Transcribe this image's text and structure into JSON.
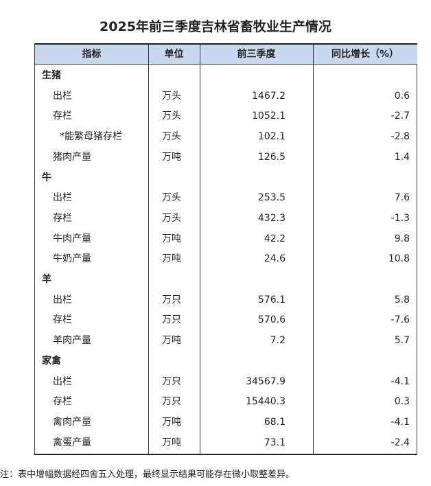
{
  "title": "2025年前三季度吉林省畜牧业生产情况",
  "table": {
    "header": [
      "指标",
      "单位",
      "前三季度",
      "同比增长（%）"
    ],
    "groups": [
      {
        "name": "生猪",
        "items": [
          {
            "name": "出栏",
            "unit": "万头",
            "value": 1467.2,
            "change": 0.6
          },
          {
            "name": "存栏",
            "unit": "万头",
            "value": 1052.1,
            "change": -2.7
          },
          {
            "name": "*能繁母猪存栏",
            "unit": "万头",
            "value": 102.1,
            "change": -2.8
          },
          {
            "name": "猪肉产量",
            "unit": "万吨",
            "value": 126.5,
            "change": 1.4
          }
        ]
      },
      {
        "name": "牛",
        "items": [
          {
            "name": "出栏",
            "unit": "万头",
            "value": 253.5,
            "change": 7.6
          },
          {
            "name": "存栏",
            "unit": "万头",
            "value": 432.3,
            "change": -1.3
          },
          {
            "name": "牛肉产量",
            "unit": "万吨",
            "value": 42.2,
            "change": 9.8
          },
          {
            "name": "牛奶产量",
            "unit": "万吨",
            "value": 24.6,
            "change": 10.8
          }
        ]
      },
      {
        "name": "羊",
        "items": [
          {
            "name": "出栏",
            "unit": "万只",
            "value": 576.1,
            "change": 5.8
          },
          {
            "name": "存栏",
            "unit": "万只",
            "value": 570.6,
            "change": -7.6
          },
          {
            "name": "羊肉产量",
            "unit": "万吨",
            "value": 7.2,
            "change": 5.7
          }
        ]
      },
      {
        "name": "家禽",
        "items": [
          {
            "name": "出栏",
            "unit": "万只",
            "value": 34567.9,
            "change": -4.1
          },
          {
            "name": "存栏",
            "unit": "万只",
            "value": 15440.3,
            "change": 0.3
          },
          {
            "name": "禽肉产量",
            "unit": "万吨",
            "value": 68.1,
            "change": -4.1
          },
          {
            "name": "禽蛋产量",
            "unit": "万吨",
            "value": 73.1,
            "change": -2.4
          }
        ]
      }
    ]
  },
  "note": "注：表中增幅数据经四舍五入处理，最终显示结果可能存在微小取整差异。"
}
